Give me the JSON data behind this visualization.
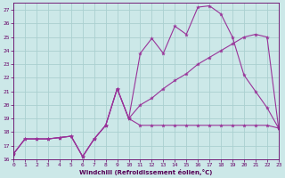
{
  "xlabel": "Windchill (Refroidissement éolien,°C)",
  "background_color": "#cce8e8",
  "grid_color": "#aad0d0",
  "line_color": "#993399",
  "xlim": [
    0,
    23
  ],
  "ylim": [
    16,
    27.5
  ],
  "yticks": [
    16,
    17,
    18,
    19,
    20,
    21,
    22,
    23,
    24,
    25,
    26,
    27
  ],
  "xticks": [
    0,
    1,
    2,
    3,
    4,
    5,
    6,
    7,
    8,
    9,
    10,
    11,
    12,
    13,
    14,
    15,
    16,
    17,
    18,
    19,
    20,
    21,
    22,
    23
  ],
  "series1_x": [
    0,
    1,
    2,
    3,
    4,
    5,
    6,
    7,
    8,
    9,
    10,
    11,
    12,
    13,
    14,
    15,
    16,
    17,
    18,
    19,
    20,
    21,
    22,
    23
  ],
  "series1_y": [
    16.4,
    17.5,
    17.5,
    17.5,
    17.6,
    17.7,
    16.2,
    17.5,
    18.5,
    21.2,
    19.0,
    18.5,
    18.5,
    18.5,
    18.5,
    18.5,
    18.5,
    18.5,
    18.5,
    18.5,
    18.5,
    18.5,
    18.5,
    18.3
  ],
  "series2_x": [
    0,
    1,
    2,
    3,
    4,
    5,
    6,
    7,
    8,
    9,
    10,
    11,
    12,
    13,
    14,
    15,
    16,
    17,
    18,
    19,
    20,
    21,
    22,
    23
  ],
  "series2_y": [
    16.4,
    17.5,
    17.5,
    17.5,
    17.6,
    17.7,
    16.2,
    17.5,
    18.5,
    21.2,
    19.0,
    23.8,
    24.9,
    23.8,
    25.8,
    25.2,
    27.2,
    27.3,
    26.7,
    25.0,
    22.2,
    21.0,
    19.8,
    18.3
  ],
  "series3_x": [
    0,
    1,
    2,
    3,
    4,
    5,
    6,
    7,
    8,
    9,
    10,
    11,
    12,
    13,
    14,
    15,
    16,
    17,
    18,
    19,
    20,
    21,
    22,
    23
  ],
  "series3_y": [
    16.4,
    17.5,
    17.5,
    17.5,
    17.6,
    17.7,
    16.2,
    17.5,
    18.5,
    21.2,
    19.0,
    20.0,
    20.5,
    21.2,
    21.8,
    22.3,
    23.0,
    23.5,
    24.0,
    24.5,
    25.0,
    25.2,
    25.0,
    18.3
  ]
}
